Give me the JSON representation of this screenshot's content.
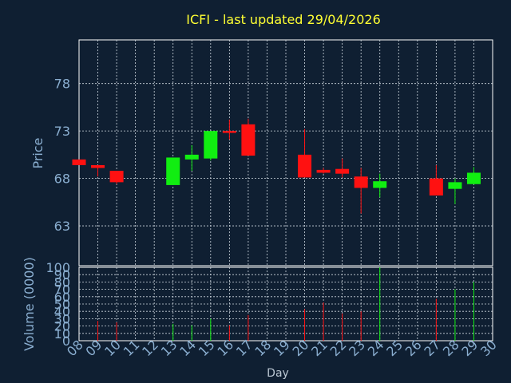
{
  "chart_data": [
    {
      "type": "candlestick",
      "title": "ICFI - last updated 29/04/2026",
      "ylabel": "Price",
      "xlabel": "Day",
      "ylim": [
        58.8,
        82.6
      ],
      "yticks": [
        63,
        68,
        73,
        78
      ],
      "x_tick_labels": [
        "08",
        "09",
        "10",
        "11",
        "12",
        "13",
        "14",
        "15",
        "16",
        "17",
        "18",
        "19",
        "20",
        "21",
        "22",
        "23",
        "24",
        "25",
        "26",
        "27",
        "28",
        "29",
        "30"
      ],
      "candles": [
        {
          "day": 8,
          "open": 70.0,
          "high": 70.0,
          "low": 69.4,
          "close": 69.4
        },
        {
          "day": 9,
          "open": 69.4,
          "high": 69.4,
          "low": 68.2,
          "close": 69.1
        },
        {
          "day": 10,
          "open": 68.8,
          "high": 68.8,
          "low": 67.4,
          "close": 67.6
        },
        {
          "day": 13,
          "open": 67.3,
          "high": 70.2,
          "low": 67.3,
          "close": 70.2
        },
        {
          "day": 14,
          "open": 70.0,
          "high": 71.5,
          "low": 68.8,
          "close": 70.5
        },
        {
          "day": 15,
          "open": 70.1,
          "high": 73.0,
          "low": 69.9,
          "close": 73.0
        },
        {
          "day": 16,
          "open": 73.0,
          "high": 74.2,
          "low": 72.1,
          "close": 72.8
        },
        {
          "day": 17,
          "open": 73.7,
          "high": 74.3,
          "low": 70.4,
          "close": 70.4
        },
        {
          "day": 20,
          "open": 70.5,
          "high": 73.2,
          "low": 68.1,
          "close": 68.1
        },
        {
          "day": 21,
          "open": 68.9,
          "high": 69.1,
          "low": 68.5,
          "close": 68.6
        },
        {
          "day": 22,
          "open": 69.0,
          "high": 70.1,
          "low": 68.1,
          "close": 68.5
        },
        {
          "day": 23,
          "open": 68.2,
          "high": 69.1,
          "low": 64.3,
          "close": 67.0
        },
        {
          "day": 24,
          "open": 67.0,
          "high": 68.5,
          "low": 66.0,
          "close": 67.7
        },
        {
          "day": 27,
          "open": 68.0,
          "high": 69.4,
          "low": 66.2,
          "close": 66.2
        },
        {
          "day": 28,
          "open": 66.9,
          "high": 68.0,
          "low": 65.3,
          "close": 67.6
        },
        {
          "day": 29,
          "open": 67.4,
          "high": 69.2,
          "low": 67.4,
          "close": 68.6
        }
      ],
      "colors": {
        "up": "#11ee11",
        "down": "#ff1111"
      }
    },
    {
      "type": "bar",
      "ylabel": "Volume (0000)",
      "ylim": [
        0,
        100
      ],
      "yticks": [
        0,
        10,
        20,
        30,
        40,
        50,
        60,
        70,
        80,
        90,
        100
      ],
      "ytick_labels": [
        "0",
        "10",
        "20",
        "30",
        "40",
        "50",
        "60",
        "70",
        "80",
        "90",
        "100"
      ],
      "volumes": [
        {
          "day": 9,
          "value": 27,
          "dir": "down"
        },
        {
          "day": 10,
          "value": 25,
          "dir": "down"
        },
        {
          "day": 13,
          "value": 23,
          "dir": "up"
        },
        {
          "day": 14,
          "value": 21,
          "dir": "up"
        },
        {
          "day": 15,
          "value": 30,
          "dir": "up"
        },
        {
          "day": 16,
          "value": 21,
          "dir": "down"
        },
        {
          "day": 17,
          "value": 35,
          "dir": "down"
        },
        {
          "day": 20,
          "value": 43,
          "dir": "down"
        },
        {
          "day": 21,
          "value": 52,
          "dir": "down"
        },
        {
          "day": 22,
          "value": 37,
          "dir": "down"
        },
        {
          "day": 23,
          "value": 40,
          "dir": "down"
        },
        {
          "day": 24,
          "value": 100,
          "dir": "up"
        },
        {
          "day": 27,
          "value": 57,
          "dir": "down"
        },
        {
          "day": 28,
          "value": 70,
          "dir": "up"
        },
        {
          "day": 29,
          "value": 80,
          "dir": "up"
        }
      ]
    }
  ]
}
